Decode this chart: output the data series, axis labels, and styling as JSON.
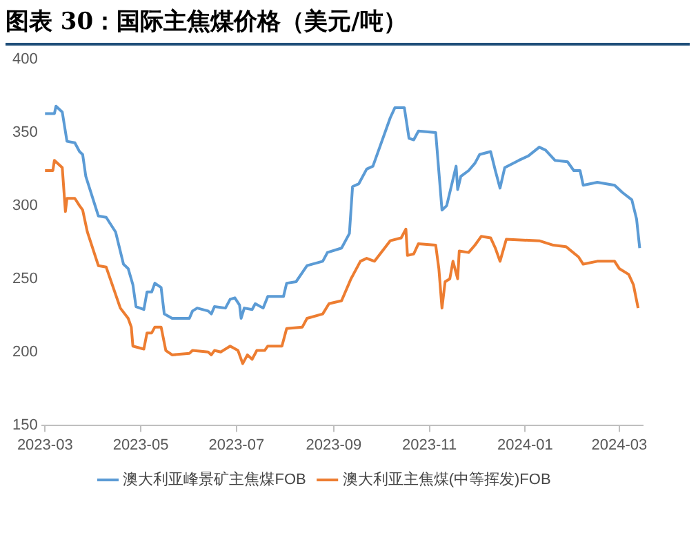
{
  "chart_data": {
    "type": "line",
    "title": "图表 30：国际主焦煤价格（美元/吨）",
    "xlim": [
      "2023-02-27",
      "2024-03-16"
    ],
    "xticks": [
      "2023-03",
      "2023-05",
      "2023-07",
      "2023-09",
      "2023-11",
      "2024-01",
      "2024-03"
    ],
    "ylim": [
      150,
      400
    ],
    "yticks": [
      150,
      200,
      250,
      300,
      350,
      400
    ],
    "grid": false,
    "legend": "bottom",
    "marker": "none",
    "line_style": "solid",
    "series": [
      {
        "name": "澳大利亚峰景矿主焦煤FOB",
        "color": "#5b9bd5",
        "x": [
          "2023-03-01",
          "2023-03-07",
          "2023-03-08",
          "2023-03-12",
          "2023-03-15",
          "2023-03-20",
          "2023-03-23",
          "2023-03-25",
          "2023-03-27",
          "2023-04-04",
          "2023-04-09",
          "2023-04-15",
          "2023-04-20",
          "2023-04-23",
          "2023-04-26",
          "2023-04-28",
          "2023-05-03",
          "2023-05-05",
          "2023-05-08",
          "2023-05-10",
          "2023-05-14",
          "2023-05-16",
          "2023-05-21",
          "2023-06-01",
          "2023-06-03",
          "2023-06-06",
          "2023-06-13",
          "2023-06-15",
          "2023-06-17",
          "2023-06-24",
          "2023-06-27",
          "2023-06-30",
          "2023-07-03",
          "2023-07-04",
          "2023-07-06",
          "2023-07-11",
          "2023-07-13",
          "2023-07-18",
          "2023-07-21",
          "2023-07-31",
          "2023-08-02",
          "2023-08-08",
          "2023-08-15",
          "2023-08-25",
          "2023-08-28",
          "2023-09-06",
          "2023-09-11",
          "2023-09-13",
          "2023-09-17",
          "2023-09-22",
          "2023-09-26",
          "2023-10-07",
          "2023-10-10",
          "2023-10-16",
          "2023-10-19",
          "2023-10-22",
          "2023-10-25",
          "2023-11-05",
          "2023-11-09",
          "2023-11-12",
          "2023-11-18",
          "2023-11-19",
          "2023-11-21",
          "2023-11-26",
          "2023-11-30",
          "2023-12-03",
          "2023-12-10",
          "2023-12-13",
          "2023-12-16",
          "2023-12-19",
          "2023-12-28",
          "2024-01-03",
          "2024-01-10",
          "2024-01-14",
          "2024-01-20",
          "2024-01-28",
          "2024-02-01",
          "2024-02-05",
          "2024-02-07",
          "2024-02-16",
          "2024-02-27",
          "2024-03-03",
          "2024-03-09",
          "2024-03-12",
          "2024-03-14"
        ],
        "values": [
          363,
          363,
          368,
          364,
          344,
          343,
          337,
          335,
          320,
          293,
          292,
          282,
          260,
          257,
          246,
          231,
          229,
          241,
          241,
          247,
          244,
          226,
          223,
          223,
          228,
          230,
          228,
          226,
          231,
          230,
          236,
          237,
          232,
          223,
          230,
          229,
          233,
          230,
          238,
          238,
          247,
          248,
          259,
          262,
          268,
          271,
          281,
          313,
          315,
          325,
          327,
          360,
          367,
          367,
          346,
          345,
          351,
          350,
          297,
          300,
          327,
          311,
          320,
          324,
          329,
          335,
          337,
          324,
          312,
          326,
          331,
          334,
          340,
          338,
          331,
          330,
          324,
          324,
          314,
          316,
          314,
          309,
          304,
          291,
          271
        ]
      },
      {
        "name": "澳大利亚主焦煤(中等挥发)FOB",
        "color": "#ed7d31",
        "x": [
          "2023-03-01",
          "2023-03-06",
          "2023-03-07",
          "2023-03-12",
          "2023-03-14",
          "2023-03-15",
          "2023-03-20",
          "2023-03-23",
          "2023-03-25",
          "2023-03-28",
          "2023-04-04",
          "2023-04-09",
          "2023-04-18",
          "2023-04-23",
          "2023-04-25",
          "2023-04-26",
          "2023-05-03",
          "2023-05-05",
          "2023-05-08",
          "2023-05-10",
          "2023-05-14",
          "2023-05-17",
          "2023-05-21",
          "2023-06-01",
          "2023-06-03",
          "2023-06-13",
          "2023-06-15",
          "2023-06-17",
          "2023-06-21",
          "2023-06-27",
          "2023-07-02",
          "2023-07-05",
          "2023-07-08",
          "2023-07-11",
          "2023-07-14",
          "2023-07-19",
          "2023-07-21",
          "2023-07-30",
          "2023-08-02",
          "2023-08-12",
          "2023-08-15",
          "2023-08-25",
          "2023-08-29",
          "2023-09-06",
          "2023-09-12",
          "2023-09-18",
          "2023-09-22",
          "2023-09-27",
          "2023-10-07",
          "2023-10-14",
          "2023-10-17",
          "2023-10-18",
          "2023-10-22",
          "2023-10-25",
          "2023-11-05",
          "2023-11-07",
          "2023-11-09",
          "2023-11-11",
          "2023-11-14",
          "2023-11-16",
          "2023-11-19",
          "2023-11-20",
          "2023-11-26",
          "2023-11-30",
          "2023-12-04",
          "2023-12-10",
          "2023-12-13",
          "2023-12-16",
          "2023-12-20",
          "2024-01-10",
          "2024-01-19",
          "2024-01-27",
          "2024-02-04",
          "2024-02-07",
          "2024-02-16",
          "2024-02-27",
          "2024-03-01",
          "2024-03-07",
          "2024-03-10",
          "2024-03-13"
        ],
        "values": [
          324,
          324,
          331,
          326,
          296,
          305,
          305,
          300,
          297,
          282,
          259,
          258,
          230,
          223,
          217,
          204,
          202,
          213,
          213,
          217,
          217,
          201,
          198,
          199,
          201,
          200,
          198,
          201,
          200,
          204,
          201,
          192,
          198,
          195,
          201,
          201,
          204,
          204,
          216,
          217,
          223,
          226,
          233,
          235,
          250,
          262,
          264,
          262,
          276,
          278,
          284,
          266,
          267,
          274,
          273,
          257,
          230,
          248,
          250,
          262,
          250,
          269,
          268,
          273,
          279,
          278,
          271,
          262,
          277,
          276,
          273,
          272,
          265,
          260,
          262,
          262,
          257,
          253,
          246,
          230
        ]
      }
    ]
  }
}
